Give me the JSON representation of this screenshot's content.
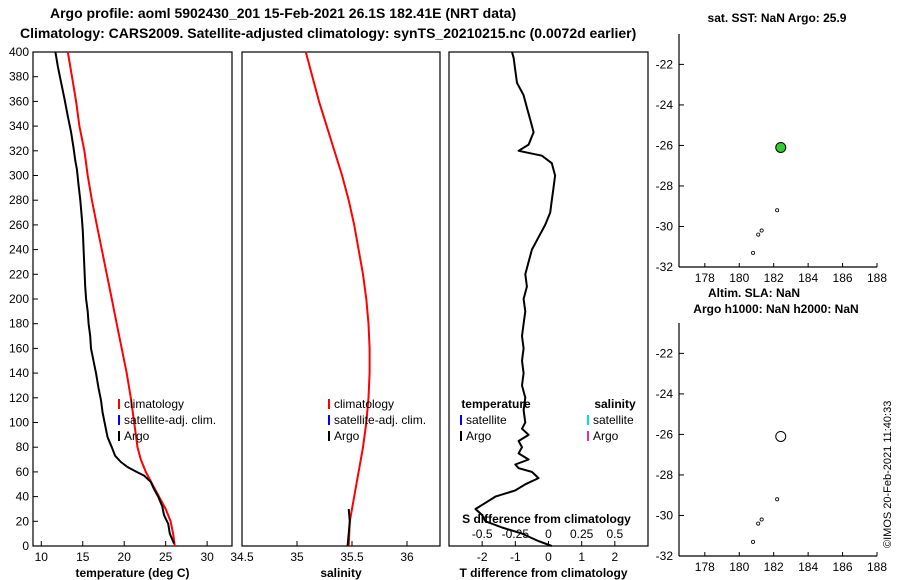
{
  "header": {
    "line1": "Argo profile: aoml 5902430_201 15-Feb-2021 26.1S 182.41E (NRT data)",
    "line2": "Climatology: CARS2009. Satellite-adjusted climatology: synTS_20210215.nc (0.0072d earlier)"
  },
  "timestamp": "©IMOS 20-Feb-2021 11:40:33",
  "colors": {
    "climatology": "#ff0000",
    "satellite": "#0000ff",
    "argo": "#000000",
    "satellite_salinity": "#00dddd",
    "argo_salinity": "#cc33cc",
    "marker": "#33cc33"
  },
  "chart_data": [
    {
      "id": "temperature-profile",
      "type": "line",
      "xlabel": "temperature (deg C)",
      "ylabel": "",
      "xlim": [
        9,
        33
      ],
      "ylim": [
        400,
        0
      ],
      "xticks": [
        "10",
        "15",
        "20",
        "25",
        "30"
      ],
      "yticks": [
        "0",
        "20",
        "40",
        "60",
        "80",
        "100",
        "120",
        "140",
        "160",
        "180",
        "200",
        "220",
        "240",
        "260",
        "280",
        "300",
        "320",
        "340",
        "360",
        "380",
        "400"
      ],
      "legend": [
        "climatology",
        "satellite-adj. clim.",
        "Argo"
      ],
      "series": [
        {
          "name": "climatology",
          "points": [
            [
              26.1,
              0
            ],
            [
              25.9,
              10
            ],
            [
              25.6,
              20
            ],
            [
              25.0,
              30
            ],
            [
              24.2,
              40
            ],
            [
              23.4,
              50
            ],
            [
              22.6,
              60
            ],
            [
              22.0,
              70
            ],
            [
              21.6,
              80
            ],
            [
              21.2,
              100
            ],
            [
              20.8,
              120
            ],
            [
              20.3,
              140
            ],
            [
              19.7,
              160
            ],
            [
              19.1,
              180
            ],
            [
              18.5,
              200
            ],
            [
              17.9,
              220
            ],
            [
              17.3,
              240
            ],
            [
              16.7,
              260
            ],
            [
              16.1,
              280
            ],
            [
              15.6,
              300
            ],
            [
              15.2,
              320
            ],
            [
              14.6,
              340
            ],
            [
              14.2,
              360
            ],
            [
              13.7,
              380
            ],
            [
              13.2,
              400
            ]
          ]
        },
        {
          "name": "Argo",
          "points": [
            [
              26.0,
              2
            ],
            [
              25.5,
              10
            ],
            [
              25.3,
              18
            ],
            [
              24.8,
              25
            ],
            [
              24.6,
              32
            ],
            [
              24.1,
              40
            ],
            [
              23.6,
              46
            ],
            [
              23.2,
              52
            ],
            [
              22.4,
              57
            ],
            [
              21.5,
              60
            ],
            [
              20.4,
              64
            ],
            [
              19.6,
              68
            ],
            [
              18.9,
              73
            ],
            [
              18.5,
              80
            ],
            [
              18.0,
              88
            ],
            [
              17.7,
              98
            ],
            [
              17.4,
              108
            ],
            [
              17.2,
              118
            ],
            [
              16.9,
              128
            ],
            [
              16.6,
              140
            ],
            [
              16.3,
              150
            ],
            [
              16.0,
              160
            ],
            [
              15.9,
              170
            ],
            [
              15.7,
              180
            ],
            [
              15.6,
              190
            ],
            [
              15.4,
              200
            ],
            [
              15.3,
              210
            ],
            [
              15.2,
              225
            ],
            [
              15.1,
              240
            ],
            [
              15.0,
              255
            ],
            [
              14.9,
              265
            ],
            [
              14.7,
              280
            ],
            [
              14.5,
              292
            ],
            [
              14.3,
              305
            ],
            [
              14.1,
              312
            ],
            [
              13.9,
              322
            ],
            [
              13.6,
              335
            ],
            [
              13.2,
              348
            ],
            [
              12.8,
              362
            ],
            [
              12.4,
              375
            ],
            [
              12.0,
              388
            ],
            [
              11.7,
              400
            ]
          ]
        }
      ]
    },
    {
      "id": "salinity-profile",
      "type": "line",
      "xlabel": "salinity",
      "ylabel": "",
      "xlim": [
        34.5,
        36.3
      ],
      "ylim": [
        400,
        0
      ],
      "xticks": [
        "34.5",
        "35",
        "35.5",
        "36"
      ],
      "legend": [
        "climatology",
        "satellite-adj. clim.",
        "Argo"
      ],
      "series": [
        {
          "name": "climatology",
          "points": [
            [
              35.47,
              0
            ],
            [
              35.48,
              20
            ],
            [
              35.52,
              40
            ],
            [
              35.56,
              60
            ],
            [
              35.6,
              80
            ],
            [
              35.63,
              100
            ],
            [
              35.65,
              120
            ],
            [
              35.66,
              140
            ],
            [
              35.66,
              160
            ],
            [
              35.65,
              180
            ],
            [
              35.63,
              200
            ],
            [
              35.6,
              220
            ],
            [
              35.56,
              240
            ],
            [
              35.52,
              260
            ],
            [
              35.47,
              280
            ],
            [
              35.41,
              300
            ],
            [
              35.34,
              320
            ],
            [
              35.27,
              340
            ],
            [
              35.2,
              360
            ],
            [
              35.14,
              380
            ],
            [
              35.08,
              400
            ]
          ]
        },
        {
          "name": "Argo",
          "points": [
            [
              35.46,
              0
            ],
            [
              35.47,
              10
            ],
            [
              35.48,
              20
            ],
            [
              35.47,
              30
            ]
          ]
        }
      ]
    },
    {
      "id": "difference-profile",
      "type": "line",
      "xlabel": "T difference from climatology",
      "secondary_xlabel": "S difference from climatology",
      "xlim": [
        -3.0,
        3.0
      ],
      "ylim": [
        400,
        0
      ],
      "xticks": [
        "-2",
        "-1",
        "0",
        "1",
        "2"
      ],
      "secondary_xticks": [
        "-0.5",
        "-0.25",
        "0",
        "0.25",
        "0.5"
      ],
      "legend_titles": [
        "temperature",
        "salinity"
      ],
      "legend": [
        "satellite",
        "Argo",
        "satellite",
        "Argo"
      ],
      "series": [
        {
          "name": "T Argo - climatology",
          "points": [
            [
              0.1,
              0
            ],
            [
              -0.3,
              4
            ],
            [
              -0.8,
              10
            ],
            [
              -1.4,
              15
            ],
            [
              -1.9,
              20
            ],
            [
              -2.0,
              25
            ],
            [
              -2.2,
              30
            ],
            [
              -1.9,
              35
            ],
            [
              -1.6,
              40
            ],
            [
              -1.0,
              45
            ],
            [
              -0.7,
              50
            ],
            [
              -0.3,
              55
            ],
            [
              -0.5,
              60
            ],
            [
              -0.9,
              63
            ],
            [
              -1.0,
              66
            ],
            [
              -0.6,
              70
            ],
            [
              -0.9,
              75
            ],
            [
              -0.8,
              80
            ],
            [
              -0.9,
              85
            ],
            [
              -0.6,
              90
            ],
            [
              -0.8,
              95
            ],
            [
              -0.7,
              100
            ],
            [
              -0.75,
              110
            ],
            [
              -0.7,
              120
            ],
            [
              -0.8,
              130
            ],
            [
              -0.75,
              140
            ],
            [
              -0.8,
              150
            ],
            [
              -0.75,
              160
            ],
            [
              -0.8,
              170
            ],
            [
              -0.75,
              180
            ],
            [
              -0.7,
              190
            ],
            [
              -0.75,
              200
            ],
            [
              -0.65,
              210
            ],
            [
              -0.7,
              220
            ],
            [
              -0.6,
              230
            ],
            [
              -0.5,
              240
            ],
            [
              -0.3,
              250
            ],
            [
              -0.1,
              260
            ],
            [
              0.05,
              270
            ],
            [
              0.1,
              280
            ],
            [
              0.15,
              290
            ],
            [
              0.2,
              300
            ],
            [
              0.1,
              310
            ],
            [
              -0.2,
              316
            ],
            [
              -0.9,
              320
            ],
            [
              -0.6,
              325
            ],
            [
              -0.45,
              335
            ],
            [
              -0.55,
              345
            ],
            [
              -0.65,
              355
            ],
            [
              -0.75,
              365
            ],
            [
              -0.95,
              375
            ],
            [
              -1.0,
              385
            ],
            [
              -1.05,
              395
            ],
            [
              -1.1,
              400
            ]
          ]
        }
      ]
    },
    {
      "id": "sst-map",
      "type": "scatter",
      "title": "sat. SST: NaN Argo: 25.9",
      "xlim": [
        176.5,
        188
      ],
      "ylim": [
        -32,
        -20.5
      ],
      "xticks": [
        "178",
        "180",
        "182",
        "184",
        "186",
        "188"
      ],
      "yticks": [
        "-22",
        "-24",
        "-26",
        "-28",
        "-30",
        "-32"
      ],
      "argo_position": {
        "lon": 182.41,
        "lat": -26.1
      },
      "track": [
        [
          182.2,
          -29.2
        ],
        [
          181.3,
          -30.2
        ],
        [
          181.1,
          -30.4
        ],
        [
          180.8,
          -31.3
        ]
      ]
    },
    {
      "id": "sla-map",
      "type": "scatter",
      "title": "Altim. SLA: NaN",
      "subtitle": "Argo h1000: NaN h2000: NaN",
      "xlim": [
        176.5,
        188
      ],
      "ylim": [
        -32,
        -20.5
      ],
      "xticks": [
        "178",
        "180",
        "182",
        "184",
        "186",
        "188"
      ],
      "yticks": [
        "-22",
        "-24",
        "-26",
        "-28",
        "-30",
        "-32"
      ],
      "argo_position": {
        "lon": 182.41,
        "lat": -26.1
      },
      "track": [
        [
          182.2,
          -29.2
        ],
        [
          181.3,
          -30.2
        ],
        [
          181.1,
          -30.4
        ],
        [
          180.8,
          -31.3
        ]
      ]
    }
  ]
}
